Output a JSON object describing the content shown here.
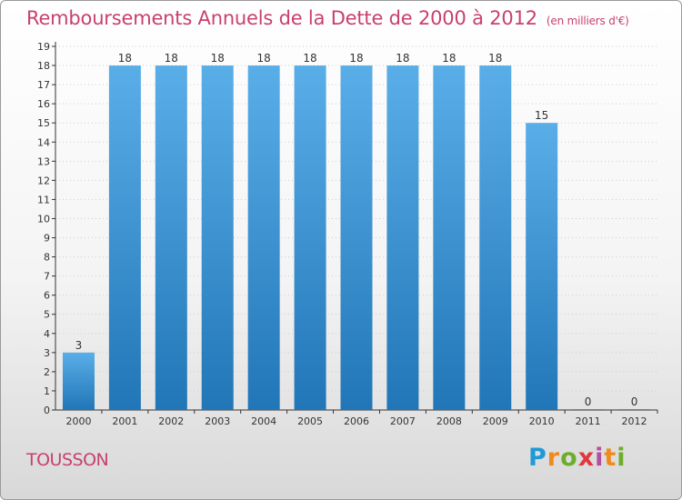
{
  "header": {
    "title": "Remboursements Annuels de la Dette de 2000 à 2012",
    "unit": "(en milliers d'€)"
  },
  "footer": {
    "commune": "TOUSSON",
    "logo_text": "Proxiti"
  },
  "colors": {
    "title": "#c8416e",
    "bar_light": "#5aaee8",
    "bar_dark": "#2176b7",
    "axis": "#333333",
    "grid": "#cfcfcf"
  },
  "chart_data": {
    "type": "bar",
    "categories": [
      "2000",
      "2001",
      "2002",
      "2003",
      "2004",
      "2005",
      "2006",
      "2007",
      "2008",
      "2009",
      "2010",
      "2011",
      "2012"
    ],
    "values": [
      3,
      18,
      18,
      18,
      18,
      18,
      18,
      18,
      18,
      18,
      15,
      0,
      0
    ],
    "data_labels": [
      "3",
      "18",
      "18",
      "18",
      "18",
      "18",
      "18",
      "18",
      "18",
      "18",
      "15",
      "0",
      "0"
    ],
    "title": "Remboursements Annuels de la Dette de 2000 à 2012",
    "xlabel": "",
    "ylabel": "",
    "ylim": [
      0,
      19
    ],
    "yticks": [
      0,
      1,
      2,
      3,
      4,
      5,
      6,
      7,
      8,
      9,
      10,
      11,
      12,
      13,
      14,
      15,
      16,
      17,
      18,
      19
    ],
    "grid": true,
    "legend": "none"
  }
}
